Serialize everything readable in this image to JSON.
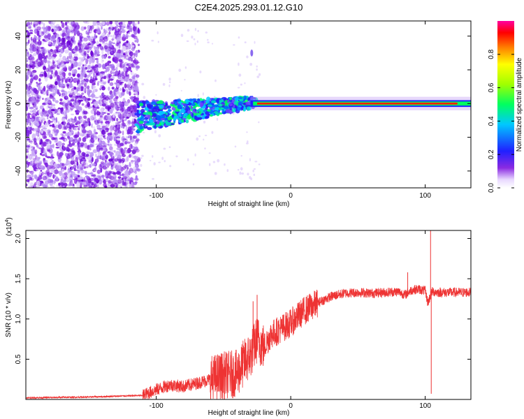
{
  "title": "C2E4.2025.293.01.12.G10",
  "colorbar": {
    "label": "Normalized spectral amplitude",
    "ticks": [
      "0.0",
      "0.2",
      "0.4",
      "0.6",
      "0.8"
    ],
    "tick_values": [
      0.0,
      0.2,
      0.4,
      0.6,
      0.8
    ],
    "range": [
      0.0,
      1.0
    ]
  },
  "chart_data": [
    {
      "type": "heatmap",
      "title": "C2E4.2025.293.01.12.G10",
      "xlabel": "Height of straight line (km)",
      "ylabel": "Frequency (Hz)",
      "xlim": [
        -197,
        134
      ],
      "ylim": [
        -50,
        49
      ],
      "xticks": [
        -100,
        0,
        100
      ],
      "xtick_labels": [
        "-100",
        "0",
        "100"
      ],
      "yticks": [
        -40,
        -20,
        0,
        20,
        40
      ],
      "ytick_labels": [
        "-40",
        "-20",
        "0",
        "20",
        "40"
      ],
      "colormap": "rainbow",
      "features": {
        "noise_region_x": [
          -197,
          -113
        ],
        "signal_line_frequency": 0,
        "signal_line_start": -25,
        "signal_line_end": 134,
        "isolated_blob": {
          "x": -29,
          "y": 30
        }
      }
    },
    {
      "type": "line",
      "xlabel": "Height of straight line (km)",
      "ylabel": "SNR (10 * v/v)",
      "multiplier_label": "(x10",
      "multiplier_exp": "4",
      "xlim": [
        -197,
        134
      ],
      "ylim": [
        0,
        2.1
      ],
      "xticks": [
        -100,
        0,
        100
      ],
      "xtick_labels": [
        "-100",
        "0",
        "100"
      ],
      "yticks": [
        0.5,
        1.0,
        1.5,
        2.0
      ],
      "ytick_labels": [
        "0.5",
        "1.0",
        "1.5",
        "2.0"
      ],
      "color": "#ee3333",
      "series": [
        {
          "name": "SNR",
          "x": [
            -197,
            -150,
            -110,
            -100,
            -90,
            -80,
            -70,
            -60,
            -50,
            -40,
            -35,
            -30,
            -25,
            -20,
            -15,
            -10,
            -5,
            0,
            10,
            20,
            30,
            40,
            50,
            60,
            70,
            80,
            85,
            90,
            95,
            100,
            102,
            105,
            110,
            120,
            134
          ],
          "y": [
            0.02,
            0.03,
            0.05,
            0.12,
            0.18,
            0.16,
            0.2,
            0.25,
            0.3,
            0.32,
            0.45,
            0.55,
            0.75,
            0.65,
            0.8,
            0.85,
            0.9,
            0.95,
            1.1,
            1.2,
            1.28,
            1.32,
            1.33,
            1.32,
            1.33,
            1.34,
            1.3,
            1.36,
            1.37,
            1.35,
            1.2,
            1.34,
            1.33,
            1.33,
            1.33
          ],
          "spikes": [
            {
              "x": -28,
              "y": 1.22
            },
            {
              "x": -25,
              "y": 1.3
            },
            {
              "x": 87,
              "y": 1.58
            },
            {
              "x": 104,
              "y": 2.1
            },
            {
              "x": 104.5,
              "y": 0.07
            }
          ]
        }
      ]
    }
  ]
}
